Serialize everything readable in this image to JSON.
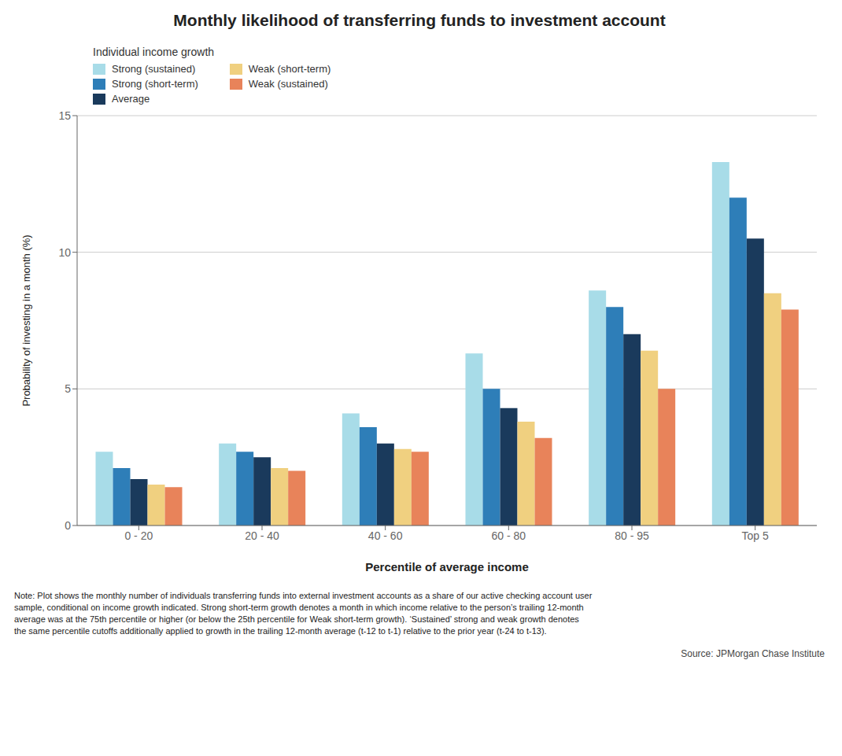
{
  "chart_data": {
    "type": "bar",
    "title": "Monthly likelihood of transferring funds to investment account",
    "xlabel": "Percentile of average income",
    "ylabel": "Probability of investing in a month (%)",
    "categories": [
      "0 - 20",
      "20 - 40",
      "40 - 60",
      "60 - 80",
      "80 - 95",
      "Top 5"
    ],
    "series": [
      {
        "name": "Strong (sustained)",
        "color": "#a8dce8",
        "values": [
          2.7,
          3.0,
          4.1,
          6.3,
          8.6,
          13.3
        ]
      },
      {
        "name": "Strong (short-term)",
        "color": "#2e7eb8",
        "values": [
          2.1,
          2.7,
          3.6,
          5.0,
          8.0,
          12.0
        ]
      },
      {
        "name": "Average",
        "color": "#1a3a5c",
        "values": [
          1.7,
          2.5,
          3.0,
          4.3,
          7.0,
          10.5
        ]
      },
      {
        "name": "Weak (short-term)",
        "color": "#f0d080",
        "values": [
          1.5,
          2.1,
          2.8,
          3.8,
          6.4,
          8.5
        ]
      },
      {
        "name": "Weak (sustained)",
        "color": "#e8835a",
        "values": [
          1.4,
          2.0,
          2.7,
          3.2,
          5.0,
          7.9
        ]
      }
    ],
    "ylim": [
      0,
      15
    ],
    "yticks": [
      0,
      5,
      10,
      15
    ],
    "grid": true,
    "legend": "upper left",
    "legend_title": "Individual income growth",
    "note": [
      "Note: Plot shows the monthly number of individuals transferring funds into external investment accounts as a share of our active checking account user",
      "sample, conditional on income growth indicated. Strong short-term growth denotes a month in which income relative to the person’s trailing 12-month",
      "average was at the 75th percentile or higher (or below the 25th percentile for Weak short-term growth). ‘Sustained’ strong and weak growth denotes",
      "the same percentile cutoffs additionally applied to growth in the trailing 12-month average (t-12 to t-1) relative to the prior year (t-24 to t-13)."
    ],
    "source": "Source: JPMorgan Chase Institute"
  }
}
